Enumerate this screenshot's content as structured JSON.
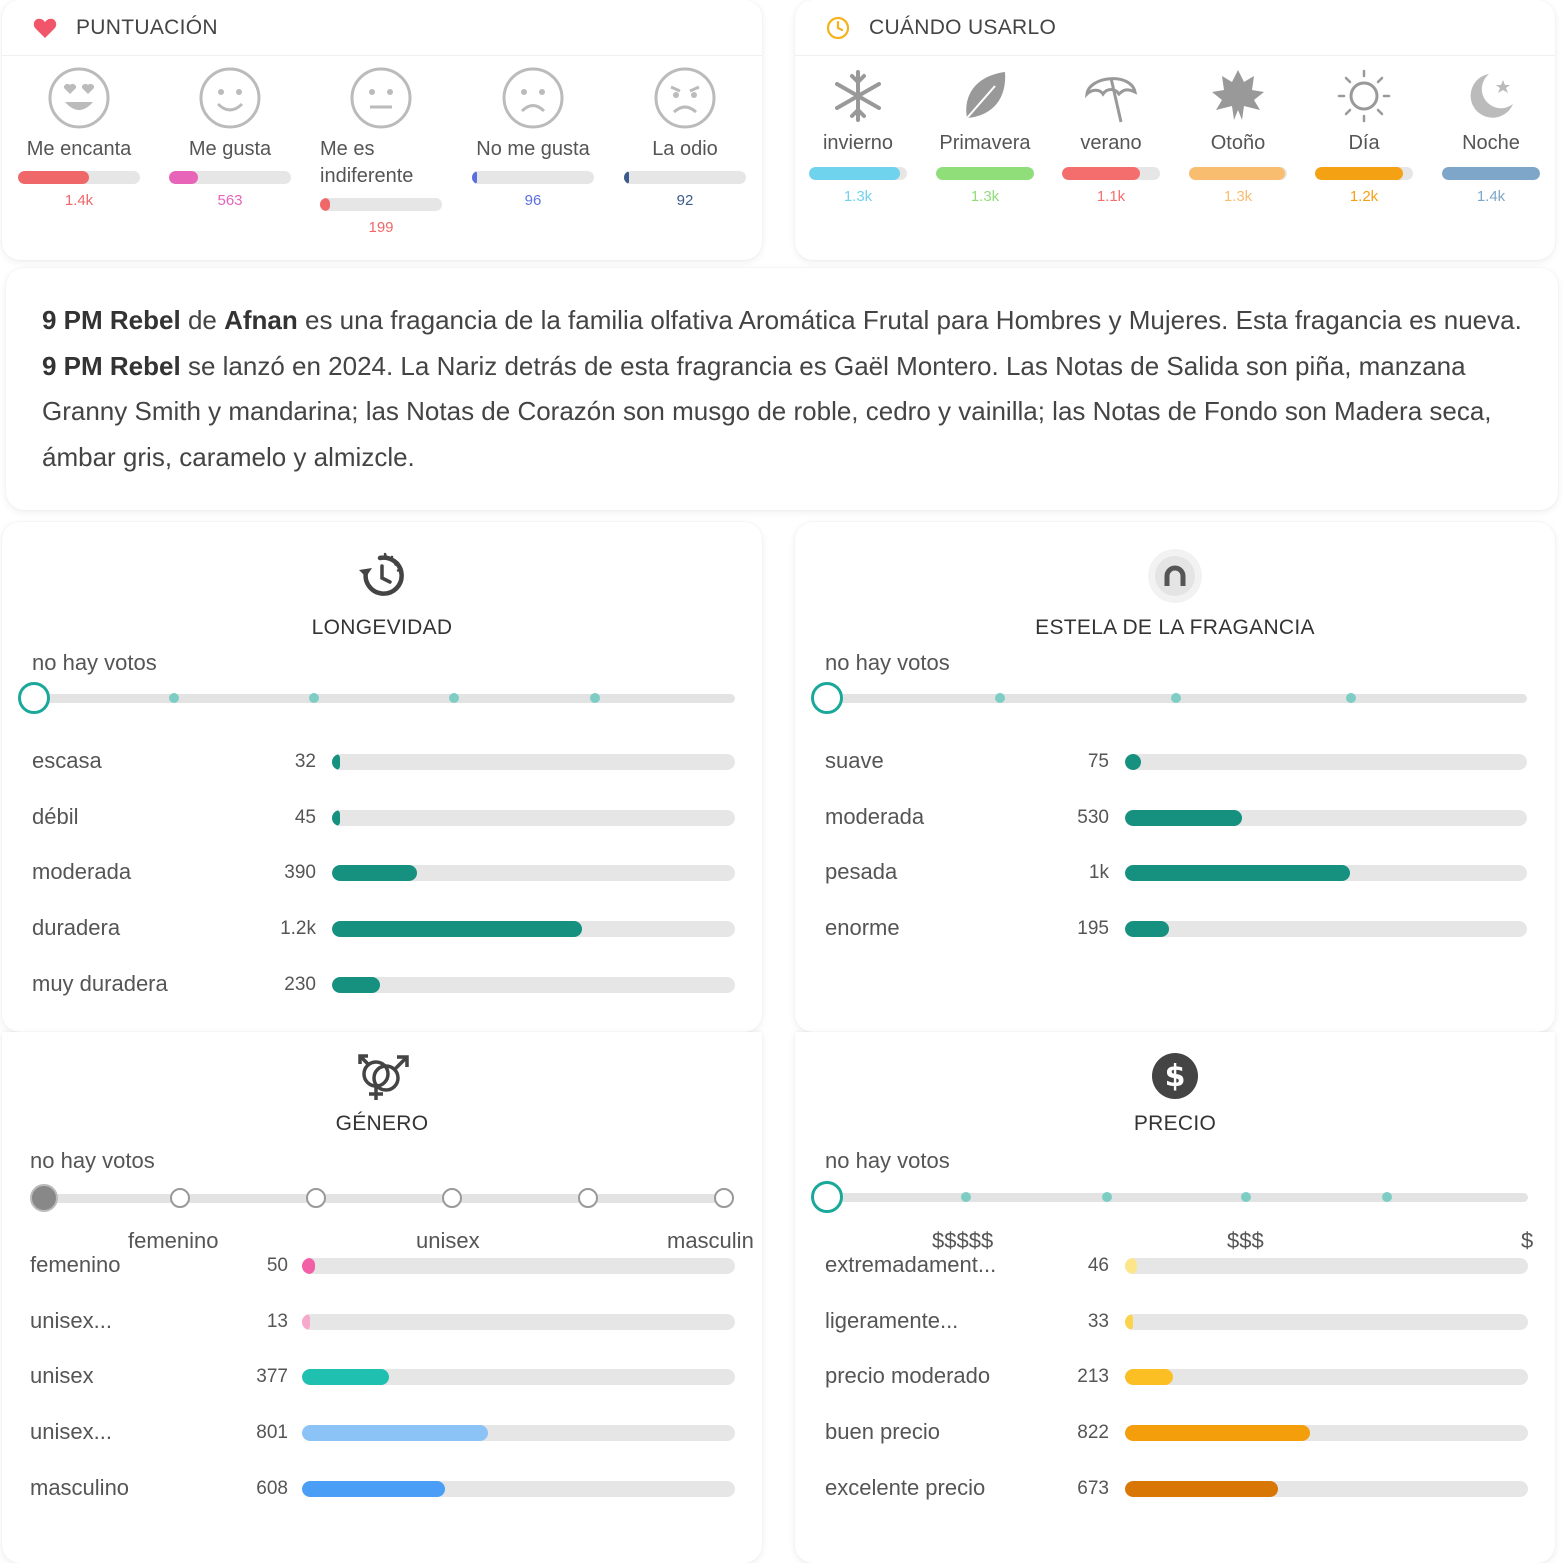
{
  "rating": {
    "title": "PUNTUACIÓN",
    "items": [
      {
        "label": "Me encanta",
        "count": "1.4k",
        "fraction": 0.58,
        "color": "#f0676a"
      },
      {
        "label": "Me gusta",
        "count": "563",
        "fraction": 0.24,
        "color": "#e864b8"
      },
      {
        "label": "Me es indiferente",
        "count": "199",
        "fraction": 0.08,
        "color": "#f0676a"
      },
      {
        "label": "No me gusta",
        "count": "96",
        "fraction": 0.04,
        "color": "#5b6ee0"
      },
      {
        "label": "La odio",
        "count": "92",
        "fraction": 0.04,
        "color": "#3b5b8c"
      }
    ]
  },
  "seasons": {
    "title": "CUÁNDO USARLO",
    "items": [
      {
        "label": "invierno",
        "count": "1.3k",
        "fraction": 0.93,
        "color": "#6fd3ee",
        "icon": "snowflake-icon"
      },
      {
        "label": "Primavera",
        "count": "1.3k",
        "fraction": 1.0,
        "color": "#8fde7a",
        "icon": "leaf-icon"
      },
      {
        "label": "verano",
        "count": "1.1k",
        "fraction": 0.8,
        "color": "#f56e6e",
        "icon": "umbrella-icon"
      },
      {
        "label": "Otoño",
        "count": "1.3k",
        "fraction": 0.98,
        "color": "#f9bd70",
        "icon": "maple-leaf-icon"
      },
      {
        "label": "Día",
        "count": "1.2k",
        "fraction": 0.9,
        "color": "#f4a114",
        "icon": "sun-icon"
      },
      {
        "label": "Noche",
        "count": "1.4k",
        "fraction": 1.0,
        "color": "#7ea6c8",
        "icon": "moon-icon"
      }
    ]
  },
  "description": {
    "name1": "9 PM Rebel",
    "t1": " de ",
    "brand": "Afnan",
    "t2": " es una fragancia de la familia olfativa Aromática Frutal para Hombres y Mujeres. Esta fragancia es nueva. ",
    "name2": "9 PM Rebel",
    "t3": " se lanzó en 2024. La Nariz detrás de esta fragrancia es Gaël Montero. Las Notas de Salida son piña, manzana Granny Smith y mandarina; las Notas de Corazón son musgo de roble, cedro y vainilla; las Notas de Fondo son Madera seca, ámbar gris, caramelo y almizcle."
  },
  "longevity": {
    "title": "LONGEVIDAD",
    "no_votes": "no hay votos",
    "rows": [
      {
        "label": "escasa",
        "count": "32",
        "fraction": 0.02
      },
      {
        "label": "débil",
        "count": "45",
        "fraction": 0.02
      },
      {
        "label": "moderada",
        "count": "390",
        "fraction": 0.21
      },
      {
        "label": "duradera",
        "count": "1.2k",
        "fraction": 0.62
      },
      {
        "label": "muy duradera",
        "count": "230",
        "fraction": 0.12
      }
    ]
  },
  "sillage": {
    "title": "ESTELA DE LA FRAGANCIA",
    "no_votes": "no hay votos",
    "rows": [
      {
        "label": "suave",
        "count": "75",
        "fraction": 0.04
      },
      {
        "label": "moderada",
        "count": "530",
        "fraction": 0.29
      },
      {
        "label": "pesada",
        "count": "1k",
        "fraction": 0.56
      },
      {
        "label": "enorme",
        "count": "195",
        "fraction": 0.11
      }
    ]
  },
  "gender": {
    "title": "GÉNERO",
    "no_votes": "no hay votos",
    "axis": [
      "femenino",
      "unisex",
      "masculin"
    ],
    "rows": [
      {
        "label": "femenino",
        "count": "50",
        "fraction": 0.03,
        "color": "#f25fa6"
      },
      {
        "label": "unisex...",
        "count": "13",
        "fraction": 0.01,
        "color": "#f7a8cd"
      },
      {
        "label": "unisex",
        "count": "377",
        "fraction": 0.2,
        "color": "#1fc0b0"
      },
      {
        "label": "unisex...",
        "count": "801",
        "fraction": 0.43,
        "color": "#8cc3f7"
      },
      {
        "label": "masculino",
        "count": "608",
        "fraction": 0.33,
        "color": "#4a9ef5"
      }
    ]
  },
  "price": {
    "title": "PRECIO",
    "no_votes": "no hay votos",
    "axis": [
      "$$$$$",
      "$$$",
      "$"
    ],
    "rows": [
      {
        "label": "extremadament...",
        "count": "46",
        "fraction": 0.03,
        "color": "#fde68a"
      },
      {
        "label": "ligeramente...",
        "count": "33",
        "fraction": 0.02,
        "color": "#fcd34d"
      },
      {
        "label": "precio moderado",
        "count": "213",
        "fraction": 0.12,
        "color": "#fbbf24"
      },
      {
        "label": "buen precio",
        "count": "822",
        "fraction": 0.46,
        "color": "#f59e0b"
      },
      {
        "label": "excelente precio",
        "count": "673",
        "fraction": 0.38,
        "color": "#d97706"
      }
    ]
  }
}
